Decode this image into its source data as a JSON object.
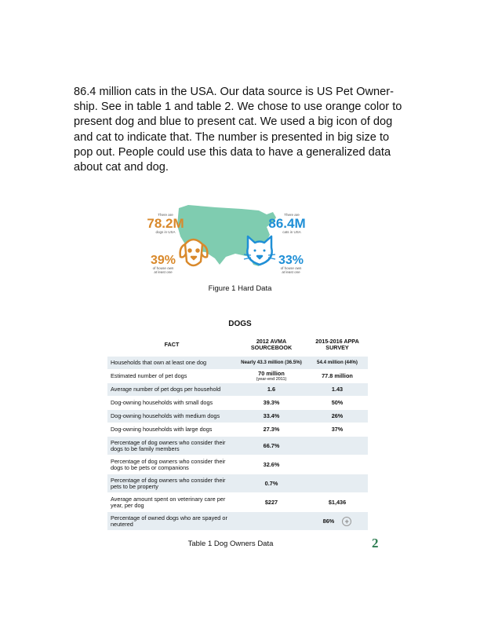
{
  "paragraph": [
    "86.4 million cats in the USA.  Our data source is US Pet Owner-",
    "ship. See in table 1 and table 2.  We chose to use orange color to",
    "present dog and blue to present cat. We used a big icon of dog",
    "and cat to indicate that. The number is presented in big size to",
    "pop out. People could use this data to have a generalized data",
    "about cat and dog."
  ],
  "figure": {
    "caption": "Figure 1 Hard Data",
    "dog": {
      "pre": "There are",
      "count": "78.2M",
      "post": "dogs in USA",
      "pct": "39%",
      "pct_label1": "of house own",
      "pct_label2": "at least one"
    },
    "cat": {
      "pre": "There are",
      "count": "86.4M",
      "post": "cats in USA",
      "pct": "33%",
      "pct_label1": "of house own",
      "pct_label2": "at least one"
    },
    "colors": {
      "dog": "#d9892b",
      "cat": "#1f8fd6",
      "map": "#7fccb0"
    },
    "icons": [
      "dog-face-icon",
      "cat-face-icon",
      "usa-map"
    ]
  },
  "table": {
    "title": "DOGS",
    "headers": [
      "FACT",
      "2012 AVMA SOURCEBOOK",
      "2015-2016 APPA SURVEY"
    ],
    "rows": [
      {
        "fact": "Households that own at least one dog",
        "v1": "Nearly 43.3 million (36.5%)",
        "v2": "54.4 million  (44%)"
      },
      {
        "fact": "Estimated number of pet dogs",
        "v1": "70 million",
        "v1_sub": "(year-end 2011)",
        "v2": "77.8 million"
      },
      {
        "fact": "Average number of pet dogs per household",
        "v1": "1.6",
        "v2": "1.43"
      },
      {
        "fact": "Dog-owning households with small dogs",
        "v1": "39.3%",
        "v2": "50%"
      },
      {
        "fact": "Dog-owning households with medium dogs",
        "v1": "33.4%",
        "v2": "26%"
      },
      {
        "fact": "Dog-owning households with large dogs",
        "v1": "27.3%",
        "v2": "37%"
      },
      {
        "fact": "Percentage of dog owners who consider their dogs to be family members",
        "v1": "66.7%",
        "v2": ""
      },
      {
        "fact": "Percentage of dog owners who consider their dogs to be pets or companions",
        "v1": "32.6%",
        "v2": ""
      },
      {
        "fact": "Percentage of dog owners who consider their pets to be property",
        "v1": "0.7%",
        "v2": ""
      },
      {
        "fact": "Average amount spent on veterinary care per year, per dog",
        "v1": "$227",
        "v2": "$1,436"
      },
      {
        "fact": "Percentage of owned dogs who are spayed or neutered",
        "v1": "",
        "v2": "86%"
      }
    ],
    "caption": "Table 1 Dog Owners Data"
  },
  "page_number": "2"
}
